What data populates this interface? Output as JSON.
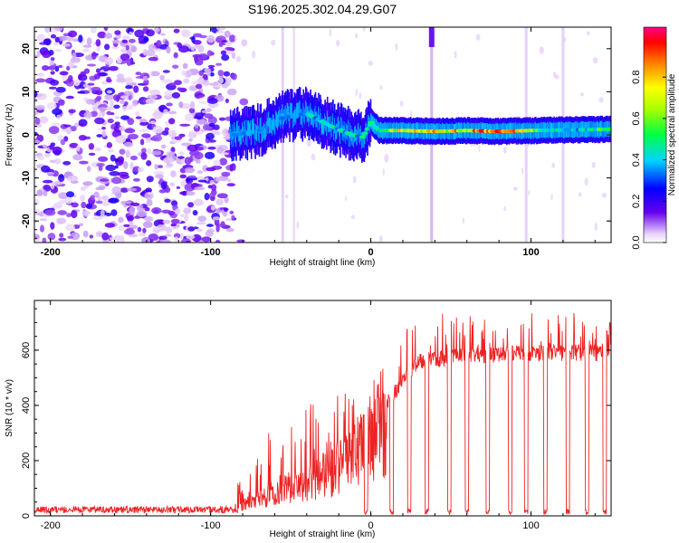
{
  "title": "S196.2025.302.04.29.G07",
  "chart_data": [
    {
      "type": "heatmap",
      "xlabel": "Height of straight line (km)",
      "ylabel": "Frequency (Hz)",
      "xlim": [
        -210,
        150
      ],
      "ylim": [
        -25,
        25
      ],
      "xticks": [
        -200,
        -100,
        0,
        100
      ],
      "xtick_labels": [
        "-200",
        "-100",
        "0",
        "100"
      ],
      "yticks": [
        20,
        10,
        0,
        -10,
        -20
      ],
      "ytick_labels": [
        "20",
        "10",
        "0",
        "-10",
        "-20"
      ],
      "colorbar": {
        "label": "Normalized spectral amplitude",
        "range": [
          0,
          1
        ],
        "ticks": [
          0.0,
          0.2,
          0.4,
          0.6,
          0.8
        ],
        "tick_labels": [
          "0.0",
          "0.2",
          "0.4",
          "0.6",
          "0.8"
        ]
      },
      "centerline_hz": [
        [
          -85,
          0
        ],
        [
          -70,
          1
        ],
        [
          -55,
          4
        ],
        [
          -40,
          5
        ],
        [
          -25,
          2
        ],
        [
          -12,
          0
        ],
        [
          -5,
          -0.5
        ],
        [
          0,
          3
        ],
        [
          5,
          1
        ],
        [
          20,
          1
        ],
        [
          40,
          0.8
        ],
        [
          60,
          1
        ],
        [
          80,
          0.8
        ],
        [
          100,
          1
        ],
        [
          150,
          1.3
        ]
      ],
      "amplitude_peaks": [
        [
          -80,
          0.35
        ],
        [
          -60,
          0.35
        ],
        [
          -35,
          0.45
        ],
        [
          -20,
          0.5
        ],
        [
          0,
          0.5
        ],
        [
          20,
          0.85
        ],
        [
          35,
          0.95
        ],
        [
          45,
          0.85
        ],
        [
          60,
          0.95
        ],
        [
          75,
          0.98
        ],
        [
          90,
          0.95
        ],
        [
          105,
          0.6
        ],
        [
          130,
          0.5
        ],
        [
          145,
          0.6
        ]
      ]
    },
    {
      "type": "line",
      "xlabel": "Height of straight line (km)",
      "ylabel": "SNR (10 * v/v)",
      "xlim": [
        -210,
        150
      ],
      "ylim": [
        0,
        780
      ],
      "xticks": [
        -200,
        -100,
        0,
        100
      ],
      "xtick_labels": [
        "-200",
        "-100",
        "0",
        "100"
      ],
      "yticks": [
        0,
        200,
        400,
        600
      ],
      "ytick_labels": [
        "0",
        "200",
        "400",
        "600"
      ],
      "color": "#ee2222",
      "baseline_snr": [
        [
          -210,
          20
        ],
        [
          -85,
          20
        ],
        [
          -80,
          50
        ],
        [
          -60,
          120
        ],
        [
          -40,
          150
        ],
        [
          -20,
          230
        ],
        [
          0,
          350
        ],
        [
          15,
          450
        ],
        [
          30,
          560
        ],
        [
          60,
          580
        ],
        [
          100,
          590
        ],
        [
          150,
          590
        ]
      ],
      "peak_snr": [
        [
          -85,
          30
        ],
        [
          -80,
          250
        ],
        [
          -60,
          330
        ],
        [
          -40,
          400
        ],
        [
          -20,
          450
        ],
        [
          0,
          480
        ],
        [
          10,
          560
        ],
        [
          20,
          680
        ],
        [
          40,
          730
        ],
        [
          70,
          750
        ],
        [
          100,
          760
        ],
        [
          120,
          740
        ],
        [
          150,
          740
        ]
      ],
      "dropouts_km": [
        -3,
        13,
        24,
        35,
        49,
        60,
        73,
        87,
        97,
        109,
        123,
        135,
        146
      ]
    }
  ]
}
